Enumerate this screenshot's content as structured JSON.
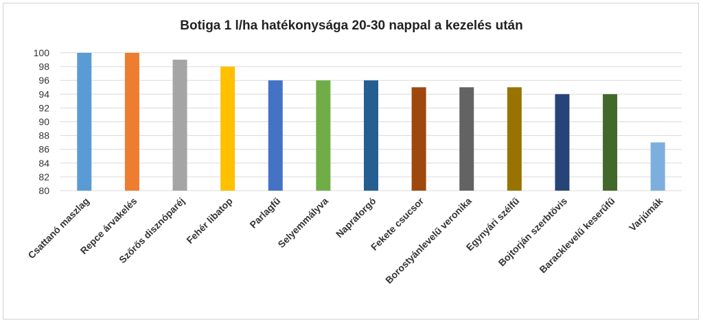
{
  "chart_data": {
    "type": "bar",
    "title": "Botiga 1 l/ha hatékonysága 20-30 nappal a kezelés után",
    "xlabel": "",
    "ylabel": "",
    "ylim": [
      80,
      100
    ],
    "yticks": [
      80,
      82,
      84,
      86,
      88,
      90,
      92,
      94,
      96,
      98,
      100
    ],
    "grid": true,
    "categories": [
      "Csattanó maszlag",
      "Repce árvakelés",
      "Szőrős disznóparéj",
      "Fehér libatop",
      "Parlagfű",
      "Selyemmályva",
      "Napraforgó",
      "Fekete csucsor",
      "Borostyánlevelű veronika",
      "Egynyári szélfű",
      "Bojtorján szerbtövis",
      "Baracklevelű keserűfű",
      "Varjúmák"
    ],
    "values": [
      100,
      100,
      99,
      98,
      96,
      96,
      96,
      95,
      95,
      95,
      94,
      94,
      87
    ],
    "bar_colors": [
      "#5b9bd5",
      "#ed7d31",
      "#a5a5a5",
      "#ffc000",
      "#4472c4",
      "#70ad47",
      "#255e91",
      "#9e480e",
      "#636363",
      "#997300",
      "#264478",
      "#43682b",
      "#7cafdd"
    ],
    "grid_color": "#d9d9d9"
  }
}
